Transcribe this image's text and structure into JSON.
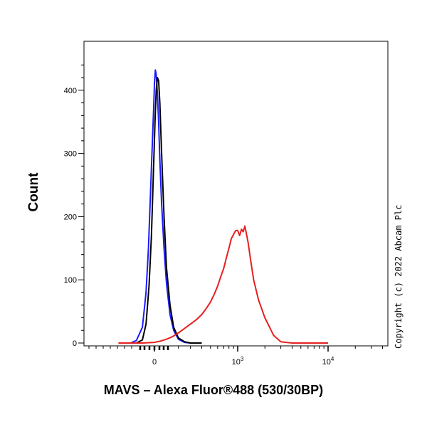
{
  "chart_data": {
    "type": "line",
    "title": "",
    "ylabel": "Count",
    "xlabel": "MAVS – Alexa Fluor®488 (530/30BP)",
    "x_scale": "logicle",
    "ylim": [
      0,
      450
    ],
    "y_ticks": [
      {
        "value": 0,
        "label": "0"
      },
      {
        "value": 100,
        "label": "100"
      },
      {
        "value": 200,
        "label": "200"
      },
      {
        "value": 300,
        "label": "300"
      },
      {
        "value": 400,
        "label": "400"
      }
    ],
    "x_ticks": [
      {
        "value": 0,
        "label": "0"
      },
      {
        "value": 1000,
        "label": "10",
        "exponent": "3"
      },
      {
        "value": 10000,
        "label": "10",
        "exponent": "4"
      }
    ],
    "grid": false,
    "legend": "none",
    "series": [
      {
        "color": "#1a1aff",
        "x": [
          -200,
          -150,
          -100,
          -70,
          -50,
          -30,
          -15,
          -5,
          0,
          8,
          15,
          25,
          35,
          45,
          60,
          80,
          100,
          130,
          160,
          200,
          250,
          300,
          400
        ],
        "y": [
          0,
          4,
          25,
          80,
          150,
          250,
          330,
          380,
          410,
          432,
          425,
          395,
          350,
          290,
          220,
          150,
          95,
          45,
          20,
          6,
          1,
          0,
          0
        ]
      },
      {
        "color": "#000000",
        "x": [
          -150,
          -100,
          -70,
          -45,
          -25,
          -10,
          5,
          15,
          25,
          35,
          45,
          60,
          80,
          100,
          130,
          160,
          200,
          250,
          300,
          400
        ],
        "y": [
          0,
          5,
          30,
          90,
          170,
          260,
          350,
          400,
          420,
          415,
          380,
          300,
          200,
          120,
          60,
          25,
          8,
          2,
          0,
          0
        ]
      },
      {
        "color": "#e62020",
        "x": [
          -300,
          -100,
          0,
          50,
          100,
          150,
          200,
          250,
          300,
          350,
          400,
          450,
          500,
          550,
          600,
          650,
          700,
          750,
          800,
          850,
          900,
          950,
          1000,
          1050,
          1100,
          1150,
          1200,
          1300,
          1400,
          1500,
          1700,
          2000,
          2500,
          3000,
          4000,
          10000
        ],
        "y": [
          0,
          0,
          1,
          3,
          6,
          10,
          16,
          23,
          30,
          37,
          45,
          55,
          65,
          77,
          90,
          105,
          118,
          135,
          150,
          165,
          172,
          178,
          178,
          170,
          180,
          176,
          185,
          160,
          128,
          100,
          68,
          40,
          12,
          2,
          0,
          0
        ]
      }
    ]
  },
  "copyright": "Copyright (c) 2022 Abcam Plc"
}
